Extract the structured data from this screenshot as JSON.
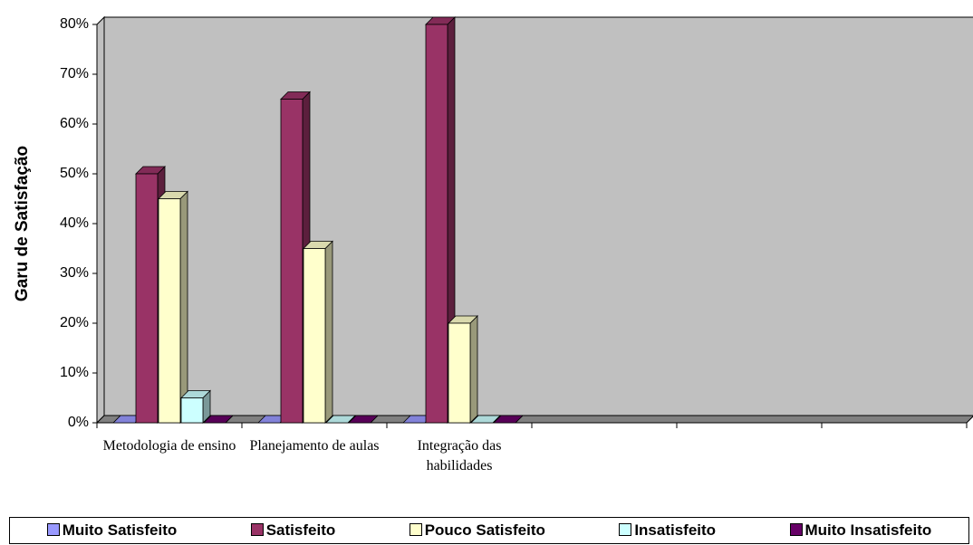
{
  "chart_data": {
    "type": "bar3d",
    "y_axis_label": "Garu de Satisfação",
    "categories": [
      "Metodologia de ensino",
      "Planejamento de aulas",
      "Integração das habilidades",
      null,
      null,
      null
    ],
    "series": [
      {
        "name": "Muito Satisfeito",
        "color": "#9999ff",
        "values": [
          0,
          0,
          0,
          null,
          null,
          null
        ]
      },
      {
        "name": "Satisfeito",
        "color": "#993366",
        "values": [
          50,
          65,
          80,
          null,
          null,
          null
        ]
      },
      {
        "name": "Pouco Satisfeito",
        "color": "#ffffcc",
        "values": [
          45,
          35,
          20,
          null,
          null,
          null
        ]
      },
      {
        "name": "Insatisfeito",
        "color": "#ccffff",
        "values": [
          5,
          0,
          0,
          null,
          null,
          null
        ]
      },
      {
        "name": "Muito Insatisfeito",
        "color": "#660066",
        "values": [
          0,
          0,
          0,
          null,
          null,
          null
        ]
      }
    ],
    "ylim": [
      0,
      80
    ],
    "yticks": [
      {
        "value": 0,
        "label": "0%"
      },
      {
        "value": 10,
        "label": "10%"
      },
      {
        "value": 20,
        "label": "20%"
      },
      {
        "value": 30,
        "label": "30%"
      },
      {
        "value": 40,
        "label": "40%"
      },
      {
        "value": 50,
        "label": "50%"
      },
      {
        "value": 60,
        "label": "60%"
      },
      {
        "value": 70,
        "label": "70%"
      },
      {
        "value": 80,
        "label": "80%"
      }
    ],
    "wall_color": "#c0c0c0",
    "floor_color": "#808080",
    "legend": "bottom"
  }
}
